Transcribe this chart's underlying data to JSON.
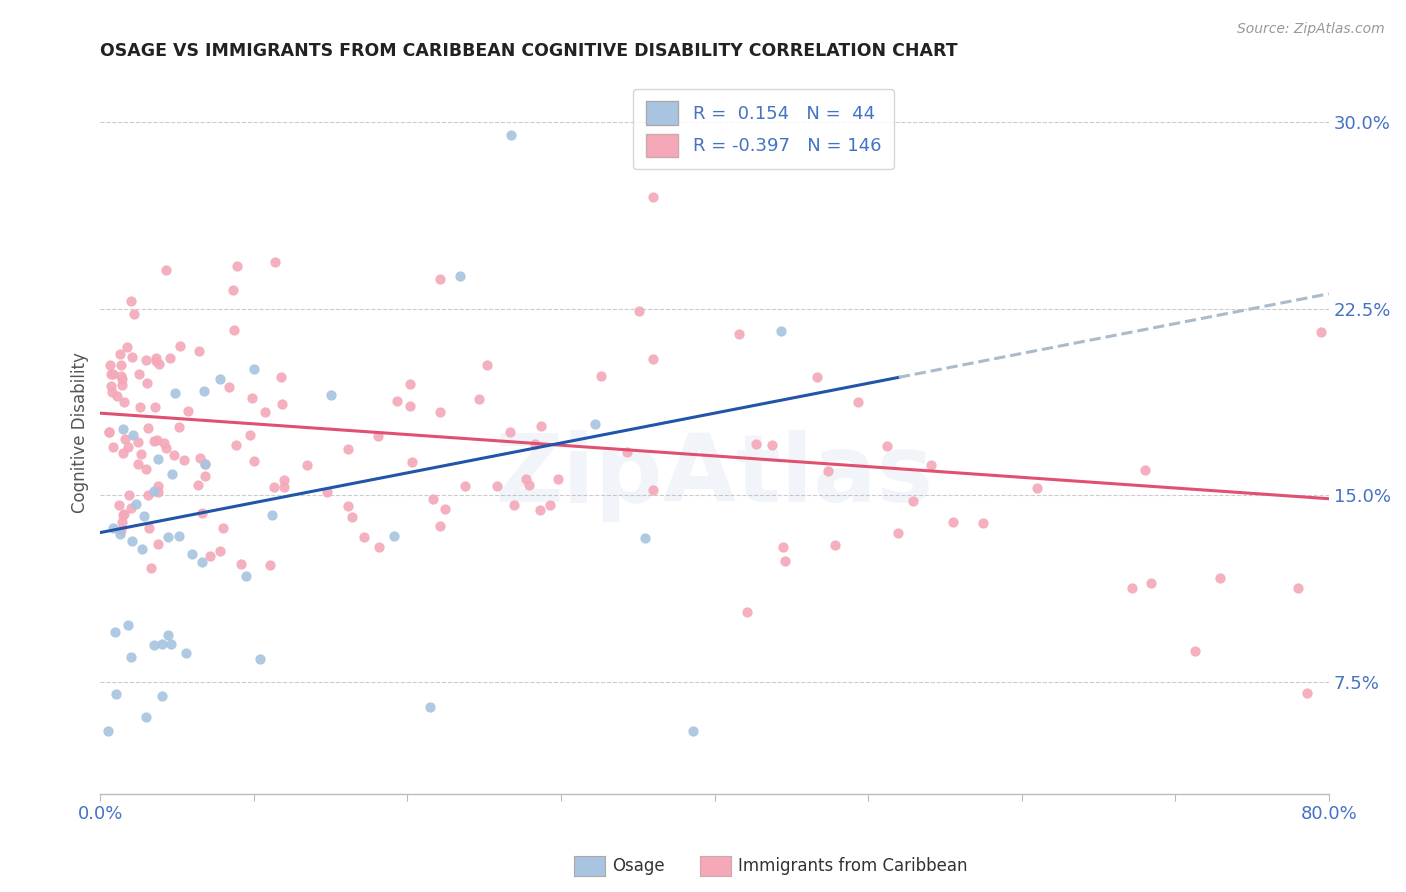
{
  "title": "OSAGE VS IMMIGRANTS FROM CARIBBEAN COGNITIVE DISABILITY CORRELATION CHART",
  "source_text": "Source: ZipAtlas.com",
  "ylabel": "Cognitive Disability",
  "xlim": [
    0.0,
    0.8
  ],
  "ylim": [
    0.03,
    0.32
  ],
  "yticks": [
    0.075,
    0.15,
    0.225,
    0.3
  ],
  "ytick_labels": [
    "7.5%",
    "15.0%",
    "22.5%",
    "30.0%"
  ],
  "xtick_labels_shown": [
    "0.0%",
    "80.0%"
  ],
  "osage_color": "#a8c4e0",
  "caribbean_color": "#f4a8b8",
  "osage_line_color": "#2255aa",
  "caribbean_line_color": "#e05070",
  "dash_color": "#aabbcc",
  "osage_R": 0.154,
  "osage_N": 44,
  "caribbean_R": -0.397,
  "caribbean_N": 146,
  "legend_label_1": "Osage",
  "legend_label_2": "Immigrants from Caribbean",
  "axis_label_color": "#4472c4",
  "background_color": "#ffffff",
  "grid_color": "#cccccc",
  "title_color": "#222222",
  "watermark": "ZipAtlas",
  "watermark_color": "#4472c4"
}
